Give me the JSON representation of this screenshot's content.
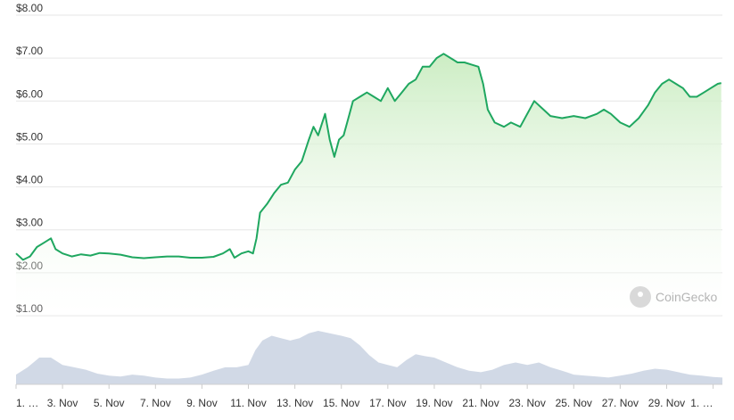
{
  "watermark": {
    "text": "CoinGecko",
    "icon": "coingecko-logo-icon"
  },
  "chart_data": {
    "type": "area",
    "title": "",
    "xlabel": "",
    "ylabel": "",
    "ylim": [
      0.5,
      8.0
    ],
    "y_ticks": [
      "$1.00",
      "$2.00",
      "$3.00",
      "$4.00",
      "$5.00",
      "$6.00",
      "$7.00",
      "$8.00"
    ],
    "y_tick_values": [
      1,
      2,
      3,
      4,
      5,
      6,
      7,
      8
    ],
    "x_ticks": [
      "1. …",
      "3. Nov",
      "5. Nov",
      "7. Nov",
      "9. Nov",
      "11. Nov",
      "13. Nov",
      "15. Nov",
      "17. Nov",
      "19. Nov",
      "21. Nov",
      "23. Nov",
      "25. Nov",
      "27. Nov",
      "29. Nov",
      "1. …"
    ],
    "x_tick_days": [
      1,
      3,
      5,
      7,
      9,
      11,
      13,
      15,
      17,
      19,
      21,
      23,
      25,
      27,
      29,
      31
    ],
    "x_range_days": [
      1,
      31.4
    ],
    "grid": true,
    "line_color": "#1fa760",
    "fill_color": "#d8f1d2",
    "volume_color": "#c9d2e2",
    "series": [
      {
        "points": [
          [
            1.0,
            2.45
          ],
          [
            1.3,
            2.3
          ],
          [
            1.6,
            2.38
          ],
          [
            1.9,
            2.6
          ],
          [
            2.2,
            2.7
          ],
          [
            2.5,
            2.8
          ],
          [
            2.7,
            2.55
          ],
          [
            3.0,
            2.45
          ],
          [
            3.4,
            2.38
          ],
          [
            3.8,
            2.43
          ],
          [
            4.2,
            2.4
          ],
          [
            4.6,
            2.46
          ],
          [
            5.0,
            2.45
          ],
          [
            5.5,
            2.42
          ],
          [
            6.0,
            2.36
          ],
          [
            6.5,
            2.34
          ],
          [
            7.0,
            2.36
          ],
          [
            7.5,
            2.38
          ],
          [
            8.0,
            2.38
          ],
          [
            8.5,
            2.35
          ],
          [
            9.0,
            2.35
          ],
          [
            9.5,
            2.37
          ],
          [
            9.9,
            2.45
          ],
          [
            10.2,
            2.55
          ],
          [
            10.4,
            2.35
          ],
          [
            10.7,
            2.45
          ],
          [
            11.0,
            2.5
          ],
          [
            11.2,
            2.45
          ],
          [
            11.35,
            2.8
          ],
          [
            11.5,
            3.4
          ],
          [
            11.8,
            3.6
          ],
          [
            12.1,
            3.85
          ],
          [
            12.4,
            4.05
          ],
          [
            12.7,
            4.1
          ],
          [
            13.0,
            4.4
          ],
          [
            13.3,
            4.6
          ],
          [
            13.6,
            5.1
          ],
          [
            13.8,
            5.4
          ],
          [
            14.0,
            5.2
          ],
          [
            14.3,
            5.7
          ],
          [
            14.5,
            5.1
          ],
          [
            14.7,
            4.7
          ],
          [
            14.9,
            5.1
          ],
          [
            15.1,
            5.2
          ],
          [
            15.3,
            5.6
          ],
          [
            15.5,
            6.0
          ],
          [
            15.8,
            6.1
          ],
          [
            16.1,
            6.2
          ],
          [
            16.4,
            6.1
          ],
          [
            16.7,
            6.0
          ],
          [
            17.0,
            6.3
          ],
          [
            17.3,
            6.0
          ],
          [
            17.6,
            6.2
          ],
          [
            17.9,
            6.4
          ],
          [
            18.2,
            6.5
          ],
          [
            18.5,
            6.8
          ],
          [
            18.8,
            6.8
          ],
          [
            19.1,
            7.0
          ],
          [
            19.4,
            7.1
          ],
          [
            19.7,
            7.0
          ],
          [
            20.0,
            6.9
          ],
          [
            20.3,
            6.9
          ],
          [
            20.6,
            6.85
          ],
          [
            20.9,
            6.8
          ],
          [
            21.1,
            6.4
          ],
          [
            21.3,
            5.8
          ],
          [
            21.6,
            5.5
          ],
          [
            22.0,
            5.4
          ],
          [
            22.3,
            5.5
          ],
          [
            22.7,
            5.4
          ],
          [
            23.0,
            5.7
          ],
          [
            23.3,
            6.0
          ],
          [
            23.7,
            5.8
          ],
          [
            24.0,
            5.65
          ],
          [
            24.5,
            5.6
          ],
          [
            25.0,
            5.65
          ],
          [
            25.5,
            5.6
          ],
          [
            26.0,
            5.7
          ],
          [
            26.3,
            5.8
          ],
          [
            26.6,
            5.7
          ],
          [
            27.0,
            5.5
          ],
          [
            27.4,
            5.4
          ],
          [
            27.8,
            5.6
          ],
          [
            28.2,
            5.9
          ],
          [
            28.5,
            6.2
          ],
          [
            28.8,
            6.4
          ],
          [
            29.1,
            6.5
          ],
          [
            29.4,
            6.4
          ],
          [
            29.7,
            6.3
          ],
          [
            30.0,
            6.1
          ],
          [
            30.3,
            6.1
          ],
          [
            30.6,
            6.2
          ],
          [
            30.9,
            6.3
          ],
          [
            31.2,
            6.4
          ],
          [
            31.35,
            6.42
          ]
        ]
      }
    ],
    "volume": [
      [
        1.0,
        0.2
      ],
      [
        1.5,
        0.35
      ],
      [
        2.0,
        0.55
      ],
      [
        2.5,
        0.55
      ],
      [
        3.0,
        0.4
      ],
      [
        3.5,
        0.35
      ],
      [
        4.0,
        0.3
      ],
      [
        4.5,
        0.22
      ],
      [
        5.0,
        0.18
      ],
      [
        5.5,
        0.16
      ],
      [
        6.0,
        0.2
      ],
      [
        6.5,
        0.18
      ],
      [
        7.0,
        0.14
      ],
      [
        7.5,
        0.12
      ],
      [
        8.0,
        0.12
      ],
      [
        8.5,
        0.14
      ],
      [
        9.0,
        0.2
      ],
      [
        9.5,
        0.28
      ],
      [
        10.0,
        0.35
      ],
      [
        10.5,
        0.35
      ],
      [
        11.0,
        0.4
      ],
      [
        11.3,
        0.7
      ],
      [
        11.6,
        0.9
      ],
      [
        12.0,
        1.0
      ],
      [
        12.4,
        0.95
      ],
      [
        12.8,
        0.9
      ],
      [
        13.2,
        0.95
      ],
      [
        13.6,
        1.05
      ],
      [
        14.0,
        1.1
      ],
      [
        14.5,
        1.05
      ],
      [
        15.0,
        1.0
      ],
      [
        15.4,
        0.95
      ],
      [
        15.8,
        0.8
      ],
      [
        16.2,
        0.6
      ],
      [
        16.6,
        0.45
      ],
      [
        17.0,
        0.4
      ],
      [
        17.4,
        0.35
      ],
      [
        17.8,
        0.5
      ],
      [
        18.2,
        0.62
      ],
      [
        18.6,
        0.58
      ],
      [
        19.0,
        0.55
      ],
      [
        19.5,
        0.45
      ],
      [
        20.0,
        0.35
      ],
      [
        20.5,
        0.28
      ],
      [
        21.0,
        0.25
      ],
      [
        21.5,
        0.3
      ],
      [
        22.0,
        0.4
      ],
      [
        22.5,
        0.45
      ],
      [
        23.0,
        0.4
      ],
      [
        23.5,
        0.45
      ],
      [
        24.0,
        0.35
      ],
      [
        24.5,
        0.28
      ],
      [
        25.0,
        0.2
      ],
      [
        25.5,
        0.18
      ],
      [
        26.0,
        0.16
      ],
      [
        26.5,
        0.14
      ],
      [
        27.0,
        0.18
      ],
      [
        27.5,
        0.22
      ],
      [
        28.0,
        0.28
      ],
      [
        28.5,
        0.32
      ],
      [
        29.0,
        0.3
      ],
      [
        29.5,
        0.25
      ],
      [
        30.0,
        0.2
      ],
      [
        30.5,
        0.18
      ],
      [
        31.0,
        0.15
      ],
      [
        31.4,
        0.14
      ]
    ]
  }
}
